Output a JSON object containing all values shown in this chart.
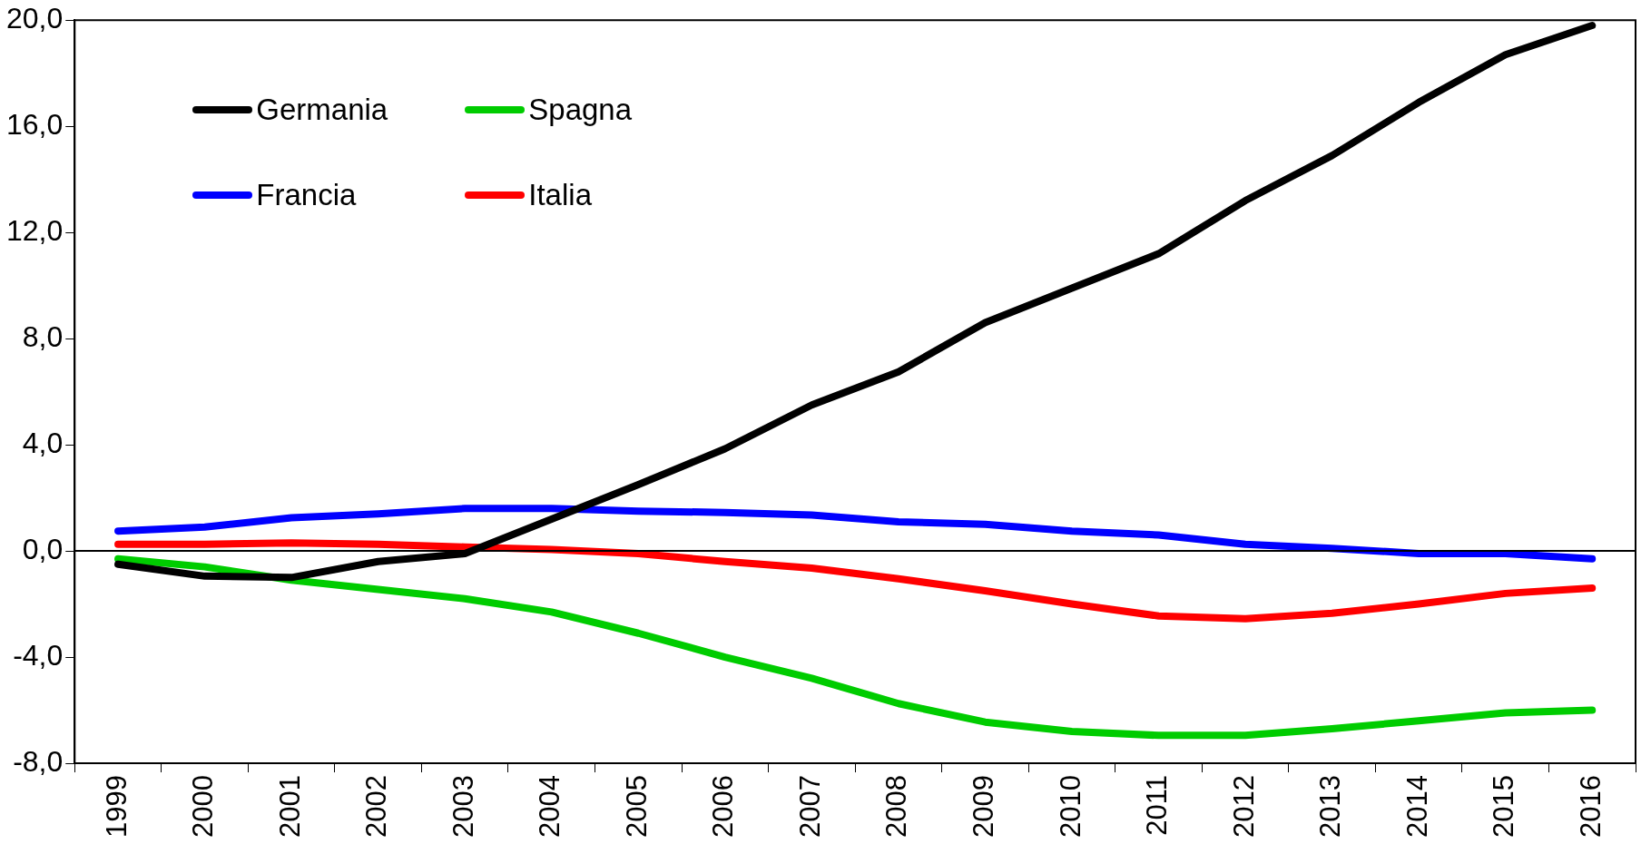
{
  "chart_data": {
    "type": "line",
    "categories": [
      "1999",
      "2000",
      "2001",
      "2002",
      "2003",
      "2004",
      "2005",
      "2006",
      "2007",
      "2008",
      "2009",
      "2010",
      "2011",
      "2012",
      "2013",
      "2014",
      "2015",
      "2016"
    ],
    "series": [
      {
        "name": "Germania",
        "color": "#000000",
        "values": [
          -0.5,
          -0.95,
          -1.0,
          -0.4,
          -0.1,
          1.2,
          2.5,
          3.85,
          5.5,
          6.75,
          8.6,
          9.9,
          11.2,
          13.2,
          14.9,
          16.9,
          18.7,
          19.8
        ]
      },
      {
        "name": "Spagna",
        "color": "#00cc00",
        "values": [
          -0.3,
          -0.6,
          -1.1,
          -1.45,
          -1.8,
          -2.3,
          -3.1,
          -4.0,
          -4.8,
          -5.75,
          -6.45,
          -6.8,
          -6.95,
          -6.95,
          -6.7,
          -6.4,
          -6.1,
          -6.0
        ]
      },
      {
        "name": "Francia",
        "color": "#0000ff",
        "values": [
          0.75,
          0.9,
          1.25,
          1.4,
          1.6,
          1.6,
          1.5,
          1.45,
          1.35,
          1.1,
          1.0,
          0.75,
          0.6,
          0.25,
          0.1,
          -0.1,
          -0.1,
          -0.3
        ]
      },
      {
        "name": "Italia",
        "color": "#ff0000",
        "values": [
          0.25,
          0.25,
          0.3,
          0.25,
          0.15,
          0.05,
          -0.1,
          -0.4,
          -0.65,
          -1.05,
          -1.5,
          -2.0,
          -2.45,
          -2.55,
          -2.35,
          -2.0,
          -1.6,
          -1.4
        ]
      }
    ],
    "ylim": [
      -8,
      20
    ],
    "yticks": [
      {
        "value": -8,
        "label": "-8,0"
      },
      {
        "value": -4,
        "label": "-4,0"
      },
      {
        "value": 0,
        "label": "0,0"
      },
      {
        "value": 4,
        "label": "4,0"
      },
      {
        "value": 8,
        "label": "8,0"
      },
      {
        "value": 12,
        "label": "12,0"
      },
      {
        "value": 16,
        "label": "16,0"
      },
      {
        "value": 20,
        "label": "20,0"
      }
    ],
    "ref_lines": [
      {
        "axis": "y",
        "value": 0,
        "color": "#000000"
      }
    ],
    "grid": false,
    "legend": "top left",
    "marker": "none",
    "line_style": "solid"
  }
}
